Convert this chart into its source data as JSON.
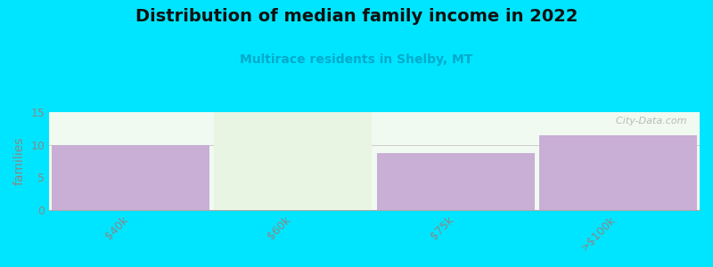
{
  "title": "Distribution of median family income in 2022",
  "subtitle": "Multirace residents in Shelby, MT",
  "categories": [
    "$40k",
    "$60k",
    "$75k",
    ">$100k"
  ],
  "values": [
    10.0,
    15.0,
    8.7,
    11.4
  ],
  "bar_colors": [
    "#c9aed6",
    "#e8f5e2",
    "#c9aed6",
    "#c9aed6"
  ],
  "background_color": "#00e5ff",
  "plot_bg_color": "#f0faf0",
  "ylabel": "families",
  "ylim": [
    0,
    15
  ],
  "yticks": [
    0,
    5,
    10,
    15
  ],
  "title_fontsize": 14,
  "subtitle_fontsize": 10,
  "subtitle_color": "#00aacc",
  "watermark": "  City-Data.com",
  "tick_label_color": "#888888",
  "ref_line_y": 10.0
}
